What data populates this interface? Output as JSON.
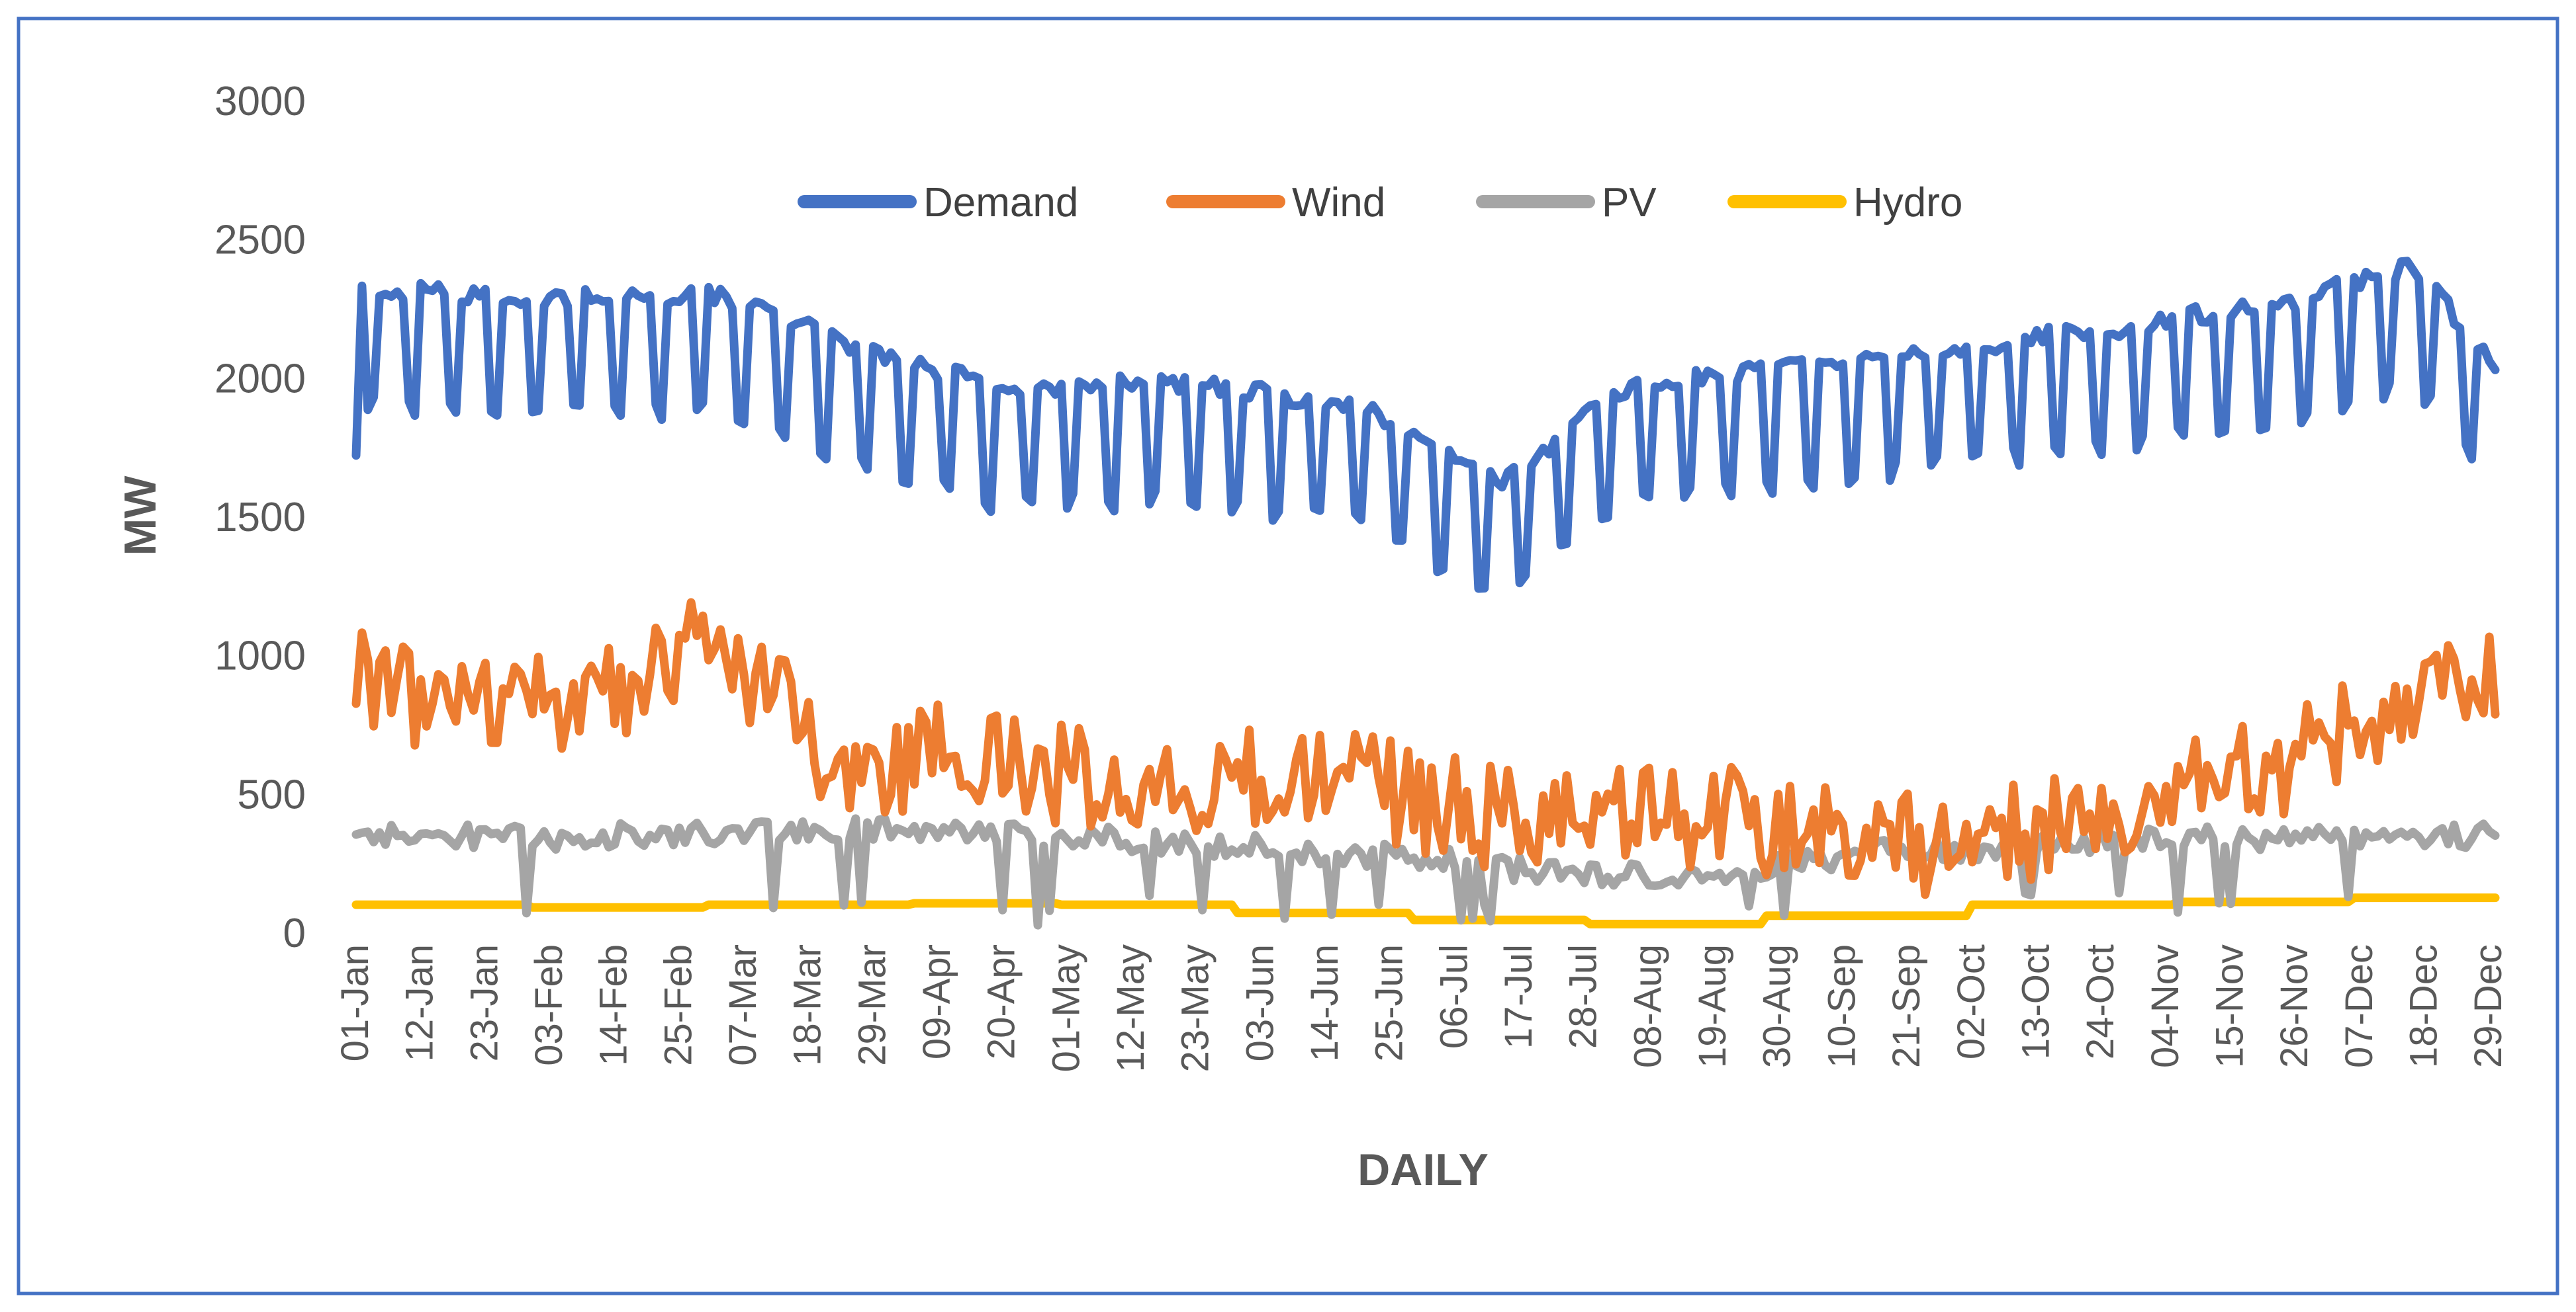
{
  "chart_data": {
    "type": "line",
    "title": "",
    "xlabel": "DAILY",
    "ylabel": "MW",
    "ylim": [
      0,
      3000
    ],
    "yticks": [
      0,
      500,
      1000,
      1500,
      2000,
      2500,
      3000
    ],
    "grid": false,
    "legend_position": "top-center",
    "x_tick_labels": [
      "01-Jan",
      "12-Jan",
      "23-Jan",
      "03-Feb",
      "14-Feb",
      "25-Feb",
      "07-Mar",
      "18-Mar",
      "29-Mar",
      "09-Apr",
      "20-Apr",
      "01-May",
      "12-May",
      "23-May",
      "03-Jun",
      "14-Jun",
      "25-Jun",
      "06-Jul",
      "17-Jul",
      "28-Jul",
      "08-Aug",
      "19-Aug",
      "30-Aug",
      "10-Sep",
      "21-Sep",
      "02-Oct",
      "13-Oct",
      "24-Oct",
      "04-Nov",
      "15-Nov",
      "26-Nov",
      "07-Dec",
      "18-Dec",
      "29-Dec"
    ],
    "x_tick_step_days": 11,
    "n_days": 365,
    "series": [
      {
        "name": "Demand",
        "color": "#4472C4",
        "pattern": "weekly",
        "weekly_keypoints": [
          [
            0,
            2320
          ],
          [
            30,
            2290
          ],
          [
            60,
            2300
          ],
          [
            90,
            2080
          ],
          [
            110,
            1960
          ],
          [
            140,
            1980
          ],
          [
            170,
            1900
          ],
          [
            195,
            1620
          ],
          [
            215,
            1960
          ],
          [
            260,
            2080
          ],
          [
            300,
            2180
          ],
          [
            330,
            2280
          ],
          [
            350,
            2400
          ],
          [
            364,
            2050
          ]
        ],
        "weekend_drop": 420,
        "start": 1720,
        "low_point": 1300
      },
      {
        "name": "Wind",
        "color": "#ED7D31",
        "pattern": "noisy",
        "keypoints": [
          [
            0,
            900
          ],
          [
            25,
            780
          ],
          [
            50,
            900
          ],
          [
            58,
            1130
          ],
          [
            70,
            860
          ],
          [
            85,
            550
          ],
          [
            95,
            640
          ],
          [
            110,
            620
          ],
          [
            130,
            520
          ],
          [
            165,
            560
          ],
          [
            200,
            380
          ],
          [
            230,
            420
          ],
          [
            270,
            310
          ],
          [
            300,
            440
          ],
          [
            330,
            620
          ],
          [
            350,
            860
          ],
          [
            364,
            950
          ]
        ],
        "noise_amplitude": 190,
        "max": 1190
      },
      {
        "name": "PV",
        "color": "#A5A5A5",
        "pattern": "noisy",
        "keypoints": [
          [
            0,
            350
          ],
          [
            30,
            340
          ],
          [
            60,
            360
          ],
          [
            90,
            370
          ],
          [
            120,
            350
          ],
          [
            150,
            310
          ],
          [
            180,
            270
          ],
          [
            200,
            220
          ],
          [
            230,
            200
          ],
          [
            260,
            290
          ],
          [
            300,
            330
          ],
          [
            340,
            350
          ],
          [
            364,
            350
          ]
        ],
        "noise_amplitude": 45,
        "dip_probability": 0.06
      },
      {
        "name": "Hydro",
        "color": "#FFC000",
        "pattern": "steps",
        "steps": [
          [
            0,
            100
          ],
          [
            30,
            90
          ],
          [
            60,
            100
          ],
          [
            95,
            105
          ],
          [
            120,
            100
          ],
          [
            150,
            70
          ],
          [
            180,
            45
          ],
          [
            210,
            30
          ],
          [
            240,
            60
          ],
          [
            275,
            100
          ],
          [
            310,
            110
          ],
          [
            340,
            125
          ]
        ]
      }
    ]
  }
}
